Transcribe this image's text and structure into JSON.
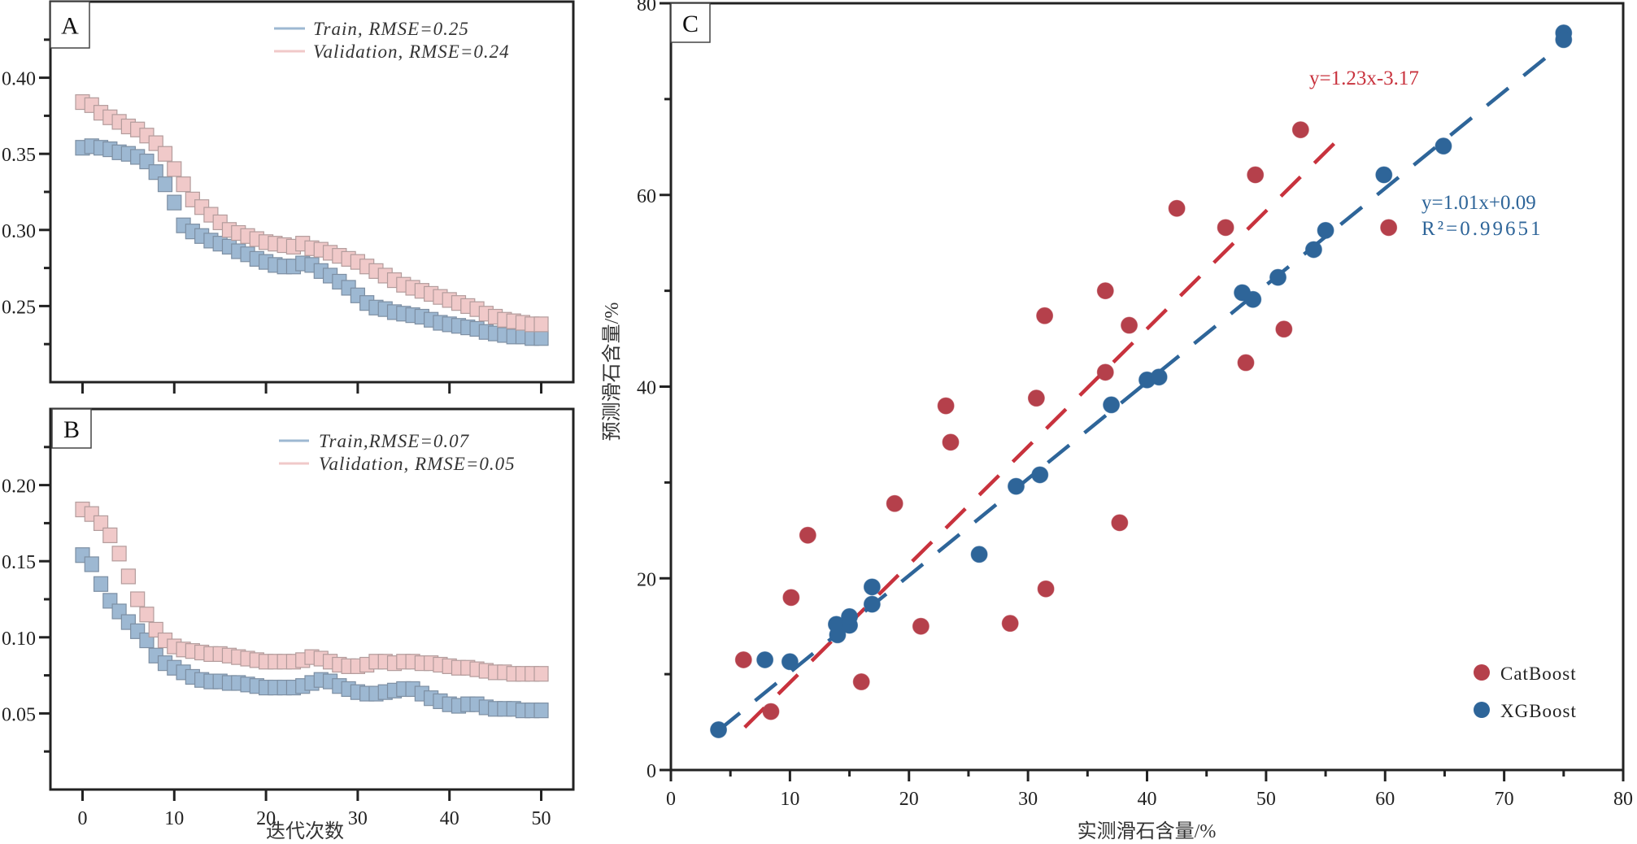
{
  "chart_data": [
    {
      "panel": "A",
      "type": "scatter",
      "marker": "square",
      "xlabel": "",
      "ylabel": "",
      "xlim": [
        -3.5,
        53.5
      ],
      "ylim": [
        0.2,
        0.45
      ],
      "yticks_major": [
        0.25,
        0.3,
        0.35,
        0.4
      ],
      "ytick_labels": [
        "0.25",
        "0.30",
        "0.35",
        "0.40"
      ],
      "yticks_minor": [
        0.225,
        0.275,
        0.325,
        0.375,
        0.425
      ],
      "xticks_major": [
        0,
        10,
        20,
        30,
        40,
        50
      ],
      "xtick_labels": [],
      "legend_position": "top-right",
      "x": [
        0,
        1,
        2,
        3,
        4,
        5,
        6,
        7,
        8,
        9,
        10,
        11,
        12,
        13,
        14,
        15,
        16,
        17,
        18,
        19,
        20,
        21,
        22,
        23,
        24,
        25,
        26,
        27,
        28,
        29,
        30,
        31,
        32,
        33,
        34,
        35,
        36,
        37,
        38,
        39,
        40,
        41,
        42,
        43,
        44,
        45,
        46,
        47,
        48,
        49,
        50
      ],
      "series": [
        {
          "name": "Train, RMSE=0.25",
          "color": "#9db8d2",
          "stroke": "#7d8fa3",
          "values": [
            0.354,
            0.355,
            0.354,
            0.353,
            0.351,
            0.35,
            0.348,
            0.345,
            0.338,
            0.33,
            0.318,
            0.303,
            0.299,
            0.296,
            0.293,
            0.291,
            0.289,
            0.286,
            0.284,
            0.281,
            0.279,
            0.277,
            0.276,
            0.276,
            0.278,
            0.277,
            0.273,
            0.27,
            0.266,
            0.262,
            0.257,
            0.252,
            0.249,
            0.248,
            0.246,
            0.245,
            0.244,
            0.243,
            0.241,
            0.239,
            0.238,
            0.237,
            0.236,
            0.235,
            0.233,
            0.232,
            0.231,
            0.23,
            0.23,
            0.229,
            0.229
          ]
        },
        {
          "name": "Validation, RMSE=0.24",
          "color": "#f0c9c9",
          "stroke": "#b39c9c",
          "values": [
            0.384,
            0.382,
            0.377,
            0.374,
            0.371,
            0.368,
            0.366,
            0.362,
            0.357,
            0.35,
            0.34,
            0.33,
            0.32,
            0.315,
            0.31,
            0.305,
            0.3,
            0.298,
            0.296,
            0.294,
            0.292,
            0.291,
            0.29,
            0.289,
            0.291,
            0.288,
            0.287,
            0.285,
            0.283,
            0.281,
            0.279,
            0.276,
            0.273,
            0.27,
            0.267,
            0.264,
            0.262,
            0.26,
            0.258,
            0.256,
            0.254,
            0.252,
            0.25,
            0.248,
            0.245,
            0.243,
            0.241,
            0.24,
            0.239,
            0.238,
            0.238
          ]
        }
      ]
    },
    {
      "panel": "B",
      "type": "scatter",
      "marker": "square",
      "xlabel": "迭代次数",
      "ylabel": "",
      "xlim": [
        -3.5,
        53.5
      ],
      "ylim": [
        0,
        0.25
      ],
      "yticks_major": [
        0.05,
        0.1,
        0.15,
        0.2
      ],
      "ytick_labels": [
        "0.05",
        "0.10",
        "0.15",
        "0.20"
      ],
      "yticks_minor": [
        0.025,
        0.075,
        0.125,
        0.175,
        0.225
      ],
      "xticks_major": [
        0,
        10,
        20,
        30,
        40,
        50
      ],
      "xtick_labels": [
        "0",
        "10",
        "20",
        "30",
        "40",
        "50"
      ],
      "legend_position": "top-right",
      "x": [
        0,
        1,
        2,
        3,
        4,
        5,
        6,
        7,
        8,
        9,
        10,
        11,
        12,
        13,
        14,
        15,
        16,
        17,
        18,
        19,
        20,
        21,
        22,
        23,
        24,
        25,
        26,
        27,
        28,
        29,
        30,
        31,
        32,
        33,
        34,
        35,
        36,
        37,
        38,
        39,
        40,
        41,
        42,
        43,
        44,
        45,
        46,
        47,
        48,
        49,
        50
      ],
      "series": [
        {
          "name": "Train,RMSE=0.07",
          "color": "#9db8d2",
          "stroke": "#7d8fa3",
          "values": [
            0.154,
            0.148,
            0.135,
            0.124,
            0.117,
            0.11,
            0.104,
            0.098,
            0.088,
            0.083,
            0.08,
            0.077,
            0.074,
            0.072,
            0.071,
            0.071,
            0.07,
            0.07,
            0.069,
            0.068,
            0.067,
            0.067,
            0.067,
            0.067,
            0.068,
            0.07,
            0.072,
            0.071,
            0.068,
            0.066,
            0.064,
            0.063,
            0.063,
            0.064,
            0.065,
            0.066,
            0.066,
            0.063,
            0.06,
            0.058,
            0.056,
            0.055,
            0.056,
            0.056,
            0.054,
            0.053,
            0.053,
            0.053,
            0.052,
            0.052,
            0.052
          ]
        },
        {
          "name": "Validation, RMSE=0.05",
          "color": "#f0c9c9",
          "stroke": "#b39c9c",
          "values": [
            0.184,
            0.181,
            0.175,
            0.167,
            0.155,
            0.14,
            0.125,
            0.115,
            0.105,
            0.098,
            0.094,
            0.092,
            0.091,
            0.09,
            0.089,
            0.089,
            0.088,
            0.087,
            0.086,
            0.085,
            0.084,
            0.084,
            0.084,
            0.084,
            0.085,
            0.087,
            0.086,
            0.084,
            0.082,
            0.081,
            0.081,
            0.082,
            0.084,
            0.084,
            0.083,
            0.084,
            0.084,
            0.083,
            0.083,
            0.082,
            0.081,
            0.08,
            0.08,
            0.079,
            0.078,
            0.077,
            0.077,
            0.076,
            0.076,
            0.076,
            0.076
          ]
        }
      ]
    },
    {
      "panel": "C",
      "type": "scatter",
      "marker": "circle",
      "xlabel": "实测滑石含量/%",
      "ylabel": "预测滑石含量/%",
      "xlim": [
        0,
        80
      ],
      "ylim": [
        0,
        80
      ],
      "xticks_major": [
        0,
        10,
        20,
        30,
        40,
        50,
        60,
        70,
        80
      ],
      "xtick_labels": [
        "0",
        "10",
        "20",
        "30",
        "40",
        "50",
        "60",
        "70",
        "80"
      ],
      "xticks_minor": [
        5,
        15,
        25,
        35,
        45,
        55,
        65,
        75
      ],
      "yticks_major": [
        0,
        20,
        40,
        60,
        80
      ],
      "ytick_labels": [
        "0",
        "20",
        "40",
        "60",
        "80"
      ],
      "yticks_minor": [
        10,
        30,
        50,
        70
      ],
      "legend_position": "bottom-right",
      "series": [
        {
          "name": "CatBoost",
          "color": "#b5404b",
          "line_color": "#c8323d",
          "fit_label": "y=1.23x-3.17",
          "fit": {
            "slope": 1.23,
            "intercept": -3.17,
            "x_range": [
              6.2,
              56.7
            ]
          },
          "points": [
            [
              6.1,
              11.5
            ],
            [
              8.4,
              6.1
            ],
            [
              10.1,
              18.0
            ],
            [
              11.5,
              24.5
            ],
            [
              16.0,
              9.2
            ],
            [
              18.8,
              27.8
            ],
            [
              21.0,
              15.0
            ],
            [
              23.1,
              38.0
            ],
            [
              23.5,
              34.2
            ],
            [
              28.5,
              15.3
            ],
            [
              30.7,
              38.8
            ],
            [
              31.4,
              47.4
            ],
            [
              31.5,
              18.9
            ],
            [
              36.5,
              50.0
            ],
            [
              36.5,
              41.5
            ],
            [
              37.7,
              25.8
            ],
            [
              38.5,
              46.4
            ],
            [
              42.5,
              58.6
            ],
            [
              46.6,
              56.6
            ],
            [
              48.3,
              42.5
            ],
            [
              49.1,
              62.1
            ],
            [
              51.5,
              46.0
            ],
            [
              52.9,
              66.8
            ],
            [
              60.3,
              56.6
            ]
          ]
        },
        {
          "name": "XGBoost",
          "color": "#2e6599",
          "line_color": "#2e6599",
          "fit_label": "y=1.01x+0.09",
          "r2_label": "R²=0.99651",
          "fit": {
            "slope": 1.01,
            "intercept": 0.09,
            "x_range": [
              4.0,
              75.3
            ]
          },
          "points": [
            [
              4.0,
              4.2
            ],
            [
              7.9,
              11.5
            ],
            [
              10.0,
              11.3
            ],
            [
              14.0,
              14.1
            ],
            [
              13.9,
              15.2
            ],
            [
              15.0,
              15.1
            ],
            [
              15.0,
              16.0
            ],
            [
              16.9,
              17.3
            ],
            [
              16.9,
              19.1
            ],
            [
              25.9,
              22.5
            ],
            [
              29.0,
              29.6
            ],
            [
              31.0,
              30.8
            ],
            [
              37.0,
              38.1
            ],
            [
              40.0,
              40.7
            ],
            [
              41.0,
              41.0
            ],
            [
              48.0,
              49.8
            ],
            [
              48.9,
              49.1
            ],
            [
              51.0,
              51.4
            ],
            [
              54.0,
              54.3
            ],
            [
              55.0,
              56.3
            ],
            [
              59.9,
              62.1
            ],
            [
              64.9,
              65.1
            ],
            [
              75.0,
              76.9
            ],
            [
              75.0,
              76.2
            ]
          ]
        }
      ]
    }
  ]
}
